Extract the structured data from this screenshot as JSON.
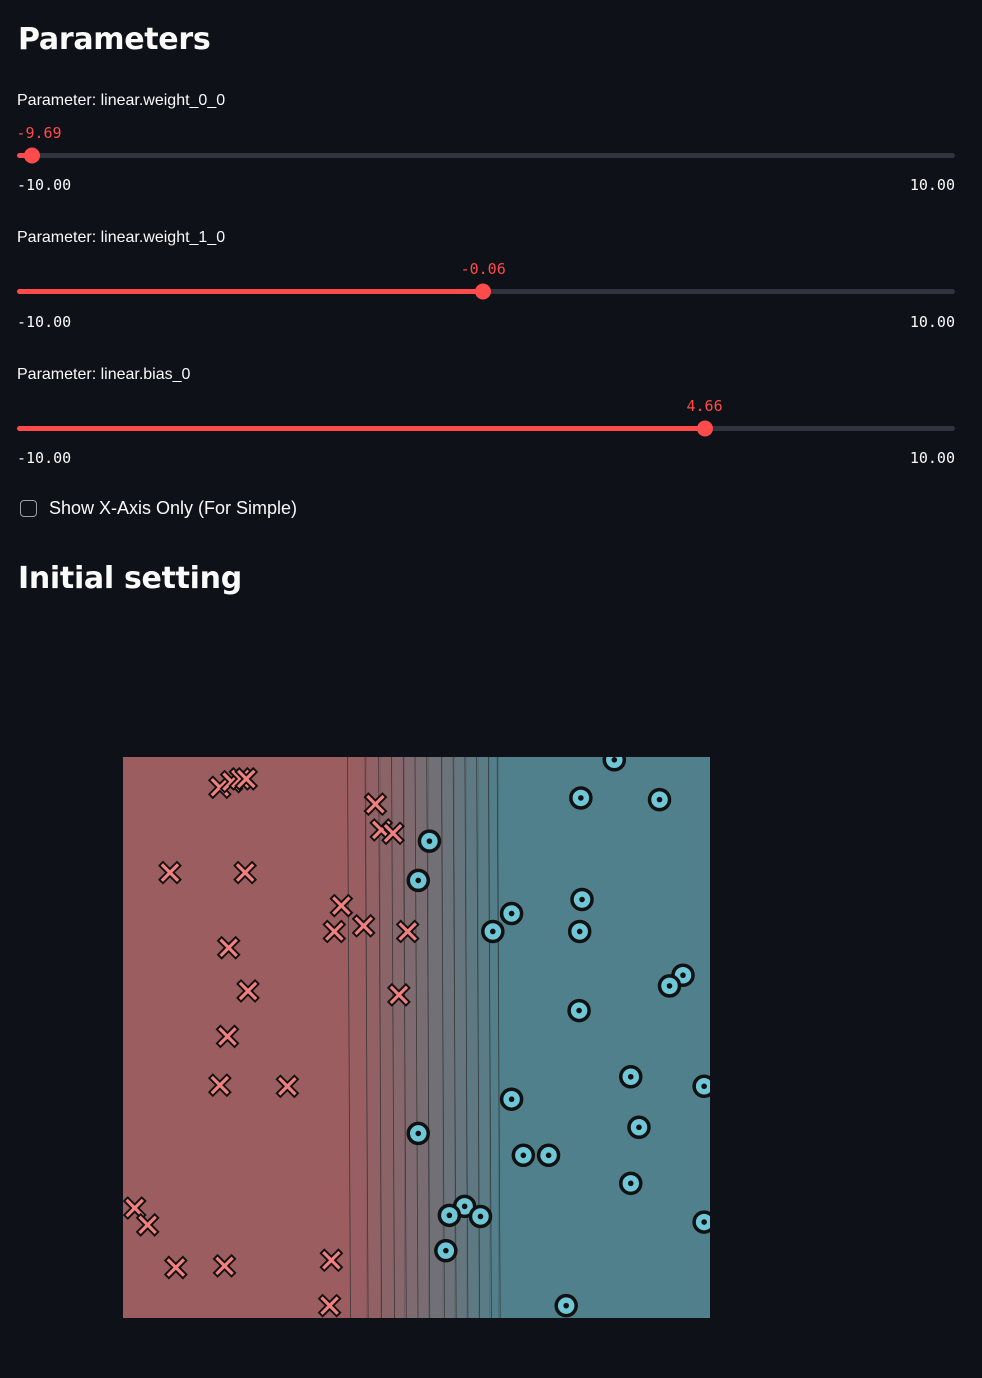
{
  "sections": {
    "parameters_title": "Parameters",
    "initial_setting_title": "Initial setting"
  },
  "sliders": [
    {
      "label": "Parameter: linear.weight_0_0",
      "value": -9.69,
      "value_text": "-9.69",
      "min": -10,
      "max": 10,
      "min_text": "-10.00",
      "max_text": "10.00"
    },
    {
      "label": "Parameter: linear.weight_1_0",
      "value": -0.06,
      "value_text": "-0.06",
      "min": -10,
      "max": 10,
      "min_text": "-10.00",
      "max_text": "10.00"
    },
    {
      "label": "Parameter: linear.bias_0",
      "value": 4.66,
      "value_text": "4.66",
      "min": -10,
      "max": 10,
      "min_text": "-10.00",
      "max_text": "10.00"
    }
  ],
  "checkbox": {
    "label": "Show X-Axis Only (For Simple)",
    "checked": false
  },
  "colors": {
    "accent": "#ff4b4b",
    "background": "#0e1117",
    "track": "#31333f",
    "class_x_region": "#9b5d5f",
    "class_o_region": "#4f808b",
    "class_x_marker": "#f08080",
    "class_o_marker": "#6ec6d6"
  },
  "chart_data": {
    "type": "scatter",
    "title": "",
    "xlabel": "",
    "ylabel": "",
    "xlim": [
      0,
      1
    ],
    "ylim": [
      0,
      1
    ],
    "decision_contours_x": [
      0.385,
      0.415,
      0.438,
      0.46,
      0.48,
      0.5,
      0.52,
      0.545,
      0.565,
      0.585,
      0.605,
      0.625,
      0.64
    ],
    "series": [
      {
        "marker": "x",
        "points": [
          [
            0.165,
            0.946
          ],
          [
            0.185,
            0.956
          ],
          [
            0.2,
            0.961
          ],
          [
            0.21,
            0.961
          ],
          [
            0.08,
            0.794
          ],
          [
            0.208,
            0.794
          ],
          [
            0.18,
            0.66
          ],
          [
            0.213,
            0.583
          ],
          [
            0.178,
            0.502
          ],
          [
            0.165,
            0.415
          ],
          [
            0.28,
            0.413
          ],
          [
            0.02,
            0.196
          ],
          [
            0.042,
            0.166
          ],
          [
            0.09,
            0.09
          ],
          [
            0.173,
            0.093
          ],
          [
            0.355,
            0.103
          ],
          [
            0.352,
            0.022
          ],
          [
            0.43,
            0.916
          ],
          [
            0.44,
            0.87
          ],
          [
            0.46,
            0.864
          ],
          [
            0.372,
            0.735
          ],
          [
            0.36,
            0.689
          ],
          [
            0.41,
            0.699
          ],
          [
            0.485,
            0.689
          ],
          [
            0.47,
            0.576
          ]
        ]
      },
      {
        "marker": "o",
        "points": [
          [
            0.837,
            0.995
          ],
          [
            0.78,
            0.927
          ],
          [
            0.914,
            0.924
          ],
          [
            0.522,
            0.85
          ],
          [
            0.503,
            0.78
          ],
          [
            0.662,
            0.721
          ],
          [
            0.63,
            0.689
          ],
          [
            0.782,
            0.746
          ],
          [
            0.778,
            0.689
          ],
          [
            0.954,
            0.611
          ],
          [
            0.931,
            0.592
          ],
          [
            0.777,
            0.548
          ],
          [
            0.865,
            0.43
          ],
          [
            0.99,
            0.413
          ],
          [
            0.662,
            0.39
          ],
          [
            0.879,
            0.34
          ],
          [
            0.503,
            0.329
          ],
          [
            0.682,
            0.29
          ],
          [
            0.725,
            0.29
          ],
          [
            0.865,
            0.24
          ],
          [
            0.99,
            0.171
          ],
          [
            0.582,
            0.199
          ],
          [
            0.609,
            0.181
          ],
          [
            0.556,
            0.183
          ],
          [
            0.55,
            0.12
          ],
          [
            0.755,
            0.022
          ]
        ]
      }
    ]
  }
}
